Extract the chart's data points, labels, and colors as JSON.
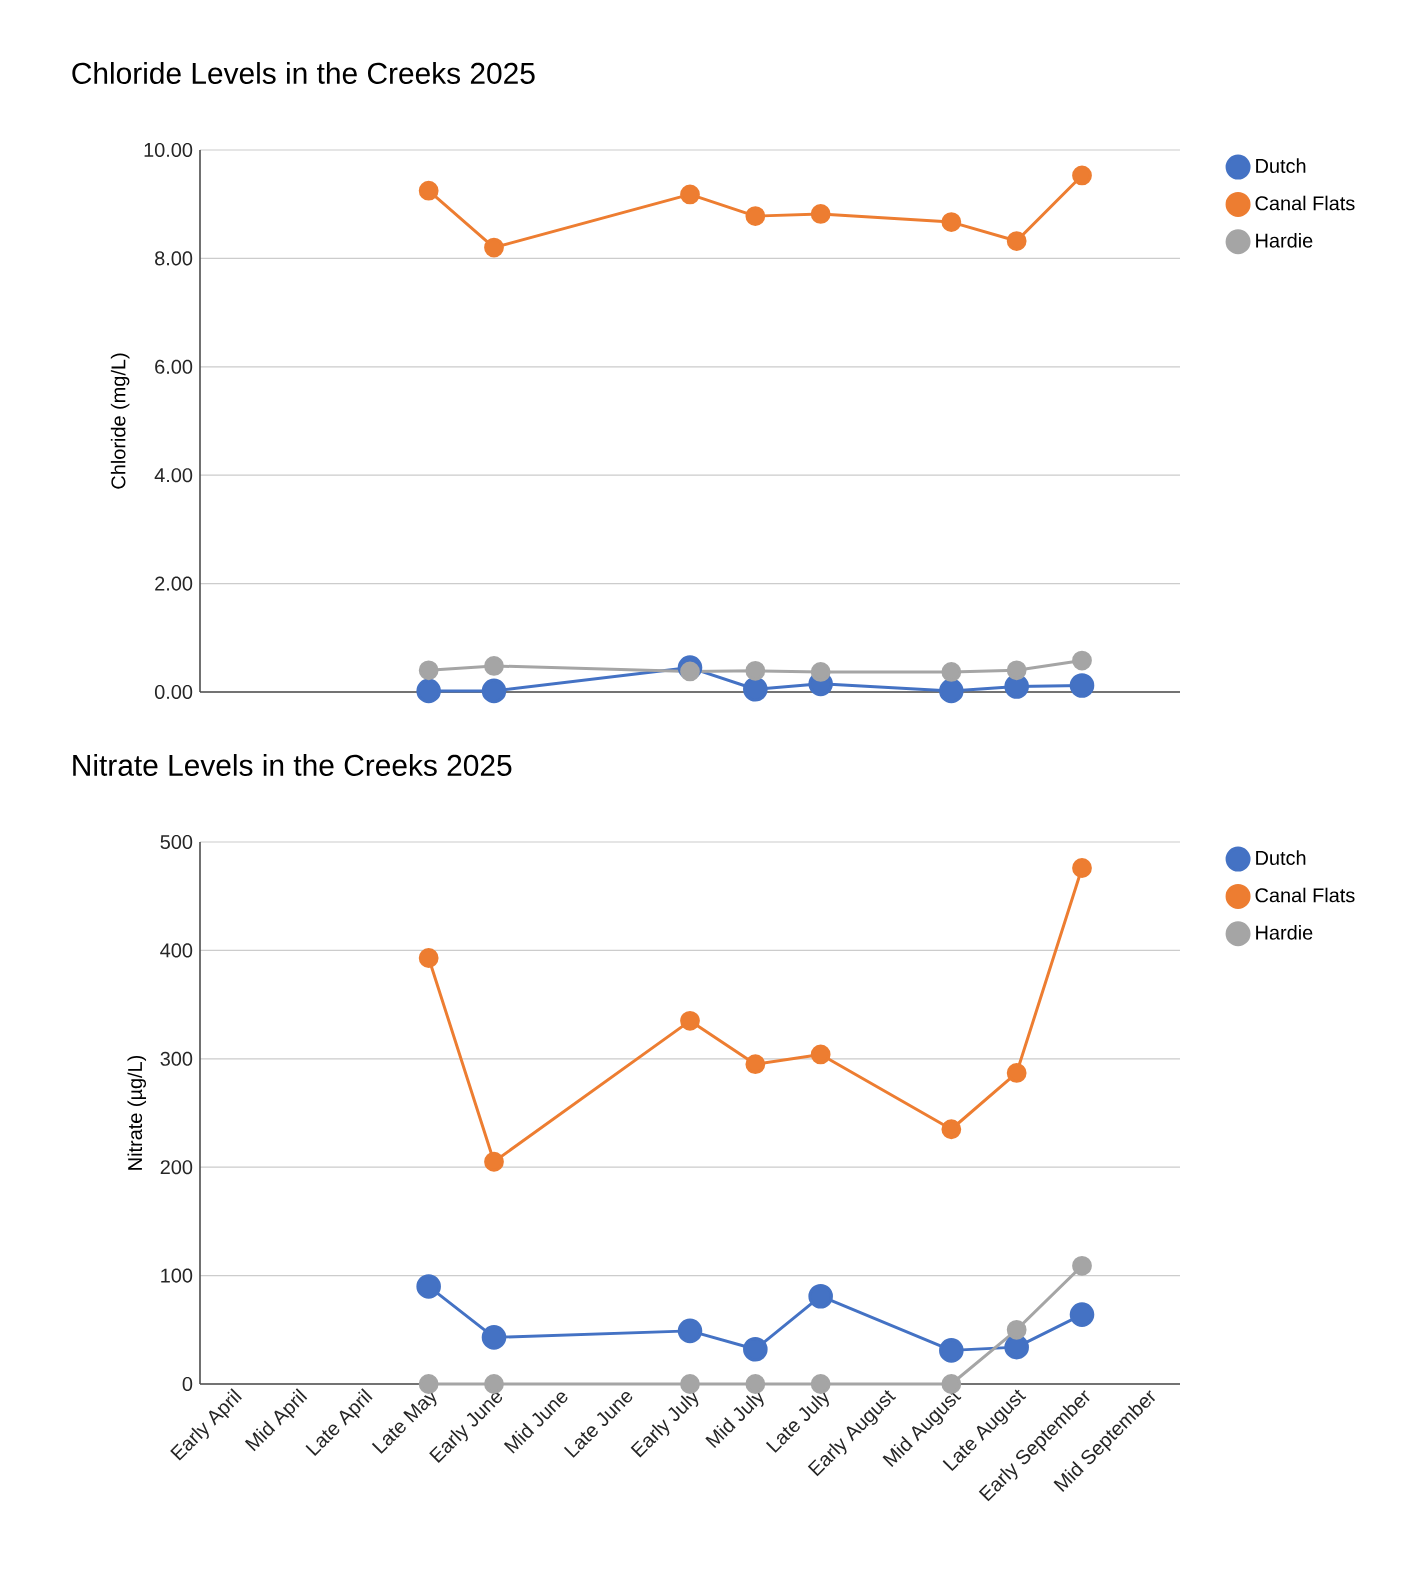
{
  "chart_data": [
    {
      "type": "line",
      "title": "Chloride Levels in the Creeks 2025",
      "ylabel": "Chloride (mg/L)",
      "categories": [
        null,
        null,
        null,
        null,
        null,
        null,
        null,
        null,
        null,
        null,
        null,
        null,
        null,
        null,
        null
      ],
      "series": [
        {
          "name": "Dutch",
          "color": "#4472c4",
          "values": [
            null,
            null,
            null,
            0.02,
            0.02,
            null,
            null,
            0.45,
            0.05,
            0.15,
            null,
            0.02,
            0.1,
            0.12,
            null
          ]
        },
        {
          "name": "Canal Flats",
          "color": "#ed7d31",
          "values": [
            null,
            null,
            null,
            9.25,
            8.2,
            null,
            null,
            9.18,
            8.78,
            8.82,
            null,
            8.67,
            8.32,
            9.53,
            null
          ]
        },
        {
          "name": "Hardie",
          "color": "#a5a5a5",
          "values": [
            null,
            null,
            null,
            0.4,
            0.48,
            null,
            null,
            0.38,
            0.39,
            0.37,
            null,
            0.37,
            0.4,
            0.58,
            null
          ]
        }
      ],
      "ylim": [
        0,
        10
      ],
      "yticks": [
        {
          "value": 0,
          "label": "0.00"
        },
        {
          "value": 2,
          "label": "2.00"
        },
        {
          "value": 4,
          "label": "4.00"
        },
        {
          "value": 6,
          "label": "6.00"
        },
        {
          "value": 8,
          "label": "8.00"
        },
        {
          "value": 10,
          "label": "10.00"
        }
      ],
      "grid": "y",
      "legend": "right",
      "marker": "circle",
      "line_style": "solid",
      "tick_labels": "y"
    },
    {
      "type": "line",
      "title": "Nitrate Levels in the Creeks 2025",
      "ylabel": "Nitrate (µg/L)",
      "categories": [
        "Early April",
        "Mid April",
        "Late April",
        "Late May",
        "Early June",
        "Mid June",
        "Late June",
        "Early July",
        "Mid July",
        "Late July",
        "Early August",
        "Mid August",
        "Late August",
        "Early September",
        "Mid September"
      ],
      "series": [
        {
          "name": "Dutch",
          "color": "#4472c4",
          "values": [
            null,
            null,
            null,
            90,
            43,
            null,
            null,
            49,
            32,
            81,
            null,
            31,
            34,
            64,
            null
          ]
        },
        {
          "name": "Canal Flats",
          "color": "#ed7d31",
          "values": [
            null,
            null,
            null,
            393,
            205,
            null,
            null,
            335,
            295,
            304,
            null,
            235,
            287,
            476,
            null
          ]
        },
        {
          "name": "Hardie",
          "color": "#a5a5a5",
          "values": [
            null,
            null,
            null,
            0,
            0,
            null,
            null,
            0,
            0,
            0,
            null,
            0,
            50,
            109,
            null
          ]
        }
      ],
      "ylim": [
        0,
        500
      ],
      "yticks": [
        0,
        100,
        200,
        300,
        400,
        500
      ],
      "grid": "y",
      "legend": "right",
      "marker": "circle",
      "line_style": "solid"
    }
  ]
}
